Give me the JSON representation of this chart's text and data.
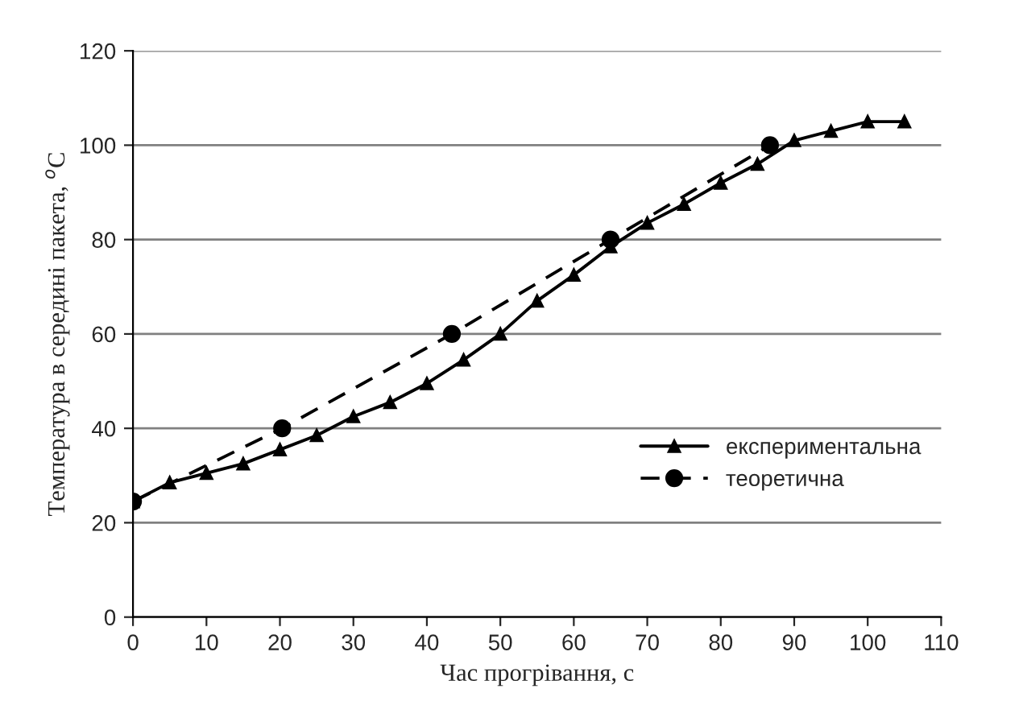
{
  "chart_data": {
    "type": "line",
    "xlabel": "Час прогрівання, с",
    "ylabel": "Температура в середині пакета, $^{o}$C",
    "xlim": [
      0,
      110
    ],
    "xticks": [
      0,
      10,
      20,
      30,
      40,
      50,
      60,
      70,
      80,
      90,
      100,
      110
    ],
    "ylim": [
      0,
      120
    ],
    "yticks": [
      0,
      20,
      40,
      60,
      80,
      100,
      120
    ],
    "grid": "y",
    "legend": "right",
    "series": [
      {
        "name": "експериментальна",
        "color": "#000000",
        "marker": "triangle",
        "line_style": "solid",
        "x": [
          0,
          5,
          10,
          15,
          20,
          25,
          30,
          35,
          40,
          45,
          50,
          55,
          60,
          65,
          70,
          75,
          80,
          85,
          90,
          95,
          100,
          105
        ],
        "values": [
          24.5,
          28.5,
          30.5,
          32.5,
          35.5,
          38.5,
          42.5,
          45.5,
          49.5,
          54.5,
          60,
          67,
          72.5,
          78.5,
          83.5,
          87.5,
          92,
          96,
          101,
          103,
          105,
          105
        ]
      },
      {
        "name": "теоретична",
        "color": "#000000",
        "marker": "circle",
        "line_style": "dashed",
        "x": [
          0,
          20.3,
          43.4,
          65,
          86.7
        ],
        "values": [
          24.5,
          40,
          60,
          80,
          100
        ]
      }
    ]
  }
}
